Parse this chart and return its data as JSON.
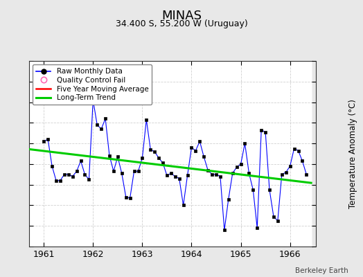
{
  "title": "MINAS",
  "subtitle": "34.400 S, 55.200 W (Uruguay)",
  "ylabel": "Temperature Anomaly (°C)",
  "attribution": "Berkeley Earth",
  "ylim": [
    -4,
    5
  ],
  "xlim": [
    1960.7,
    1966.45
  ],
  "xticks": [
    1961,
    1962,
    1963,
    1964,
    1965,
    1966
  ],
  "yticks": [
    -4,
    -3,
    -2,
    -1,
    0,
    1,
    2,
    3,
    4,
    5
  ],
  "bg_color": "#e8e8e8",
  "plot_bg_color": "#ffffff",
  "raw_x": [
    1961.0,
    1961.083,
    1961.167,
    1961.25,
    1961.333,
    1961.417,
    1961.5,
    1961.583,
    1961.667,
    1961.75,
    1961.833,
    1961.917,
    1962.0,
    1962.083,
    1962.167,
    1962.25,
    1962.333,
    1962.417,
    1962.5,
    1962.583,
    1962.667,
    1962.75,
    1962.833,
    1962.917,
    1963.0,
    1963.083,
    1963.167,
    1963.25,
    1963.333,
    1963.417,
    1963.5,
    1963.583,
    1963.667,
    1963.75,
    1963.833,
    1963.917,
    1964.0,
    1964.083,
    1964.167,
    1964.25,
    1964.333,
    1964.417,
    1964.5,
    1964.583,
    1964.667,
    1964.75,
    1964.833,
    1964.917,
    1965.0,
    1965.083,
    1965.167,
    1965.25,
    1965.333,
    1965.417,
    1965.5,
    1965.583,
    1965.667,
    1965.75,
    1965.833,
    1965.917,
    1966.0,
    1966.083,
    1966.167,
    1966.25,
    1966.333
  ],
  "raw_y": [
    1.1,
    1.2,
    -0.1,
    -0.8,
    -0.8,
    -0.5,
    -0.5,
    -0.6,
    -0.35,
    0.15,
    -0.5,
    -0.75,
    3.1,
    1.9,
    1.7,
    2.2,
    0.4,
    -0.35,
    0.35,
    -0.45,
    -1.6,
    -1.65,
    -0.35,
    -0.35,
    0.3,
    2.15,
    0.7,
    0.6,
    0.3,
    0.05,
    -0.55,
    -0.45,
    -0.6,
    -0.7,
    -2.0,
    -0.55,
    0.8,
    0.65,
    1.1,
    0.35,
    -0.3,
    -0.5,
    -0.5,
    -0.6,
    -3.2,
    -1.7,
    -0.45,
    -0.15,
    0.0,
    1.0,
    -0.45,
    -1.25,
    -3.1,
    1.65,
    1.55,
    -1.25,
    -2.55,
    -2.75,
    -0.5,
    -0.4,
    -0.1,
    0.75,
    0.65,
    0.15,
    -0.5
  ],
  "trend_x": [
    1960.7,
    1966.45
  ],
  "trend_y": [
    0.72,
    -0.92
  ],
  "raw_line_color": "#0000ff",
  "raw_marker_color": "#000000",
  "trend_color": "#00cc00",
  "moving_avg_color": "#ff0000",
  "legend_qc_color": "#ff69b4",
  "grid_color": "#d0d0d0"
}
